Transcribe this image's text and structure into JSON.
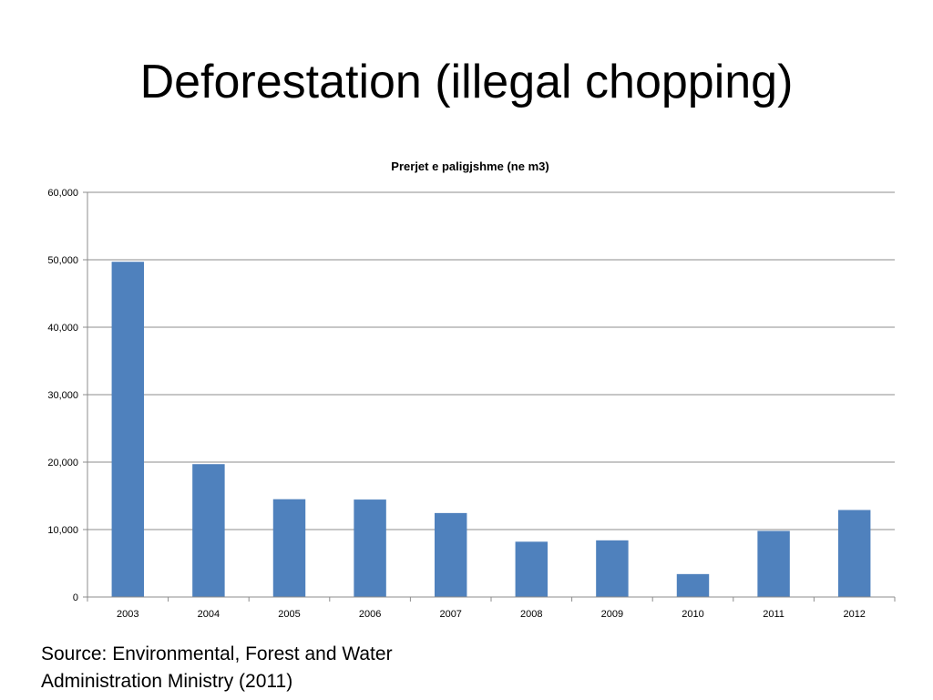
{
  "slide": {
    "title": "Deforestation (illegal chopping)",
    "source_line1": "Source: Environmental, Forest and Water",
    "source_line2": "Administration Ministry (2011)"
  },
  "chart_data": {
    "type": "bar",
    "title": "Prerjet e paligjshme (ne m3)",
    "xlabel": "",
    "ylabel": "",
    "categories": [
      "2003",
      "2004",
      "2005",
      "2006",
      "2007",
      "2008",
      "2009",
      "2010",
      "2011",
      "2012"
    ],
    "values": [
      49700,
      19700,
      14500,
      14450,
      12450,
      8200,
      8400,
      3400,
      9800,
      12900
    ],
    "ylim": [
      0,
      60000
    ],
    "yticks": [
      0,
      10000,
      20000,
      30000,
      40000,
      50000,
      60000
    ],
    "ytick_labels": [
      "0",
      "10,000",
      "20,000",
      "30,000",
      "40,000",
      "50,000",
      "60,000"
    ],
    "grid": true,
    "legend": "none",
    "bar_color": "#4f81bd",
    "grid_color": "#8c8c8c"
  }
}
